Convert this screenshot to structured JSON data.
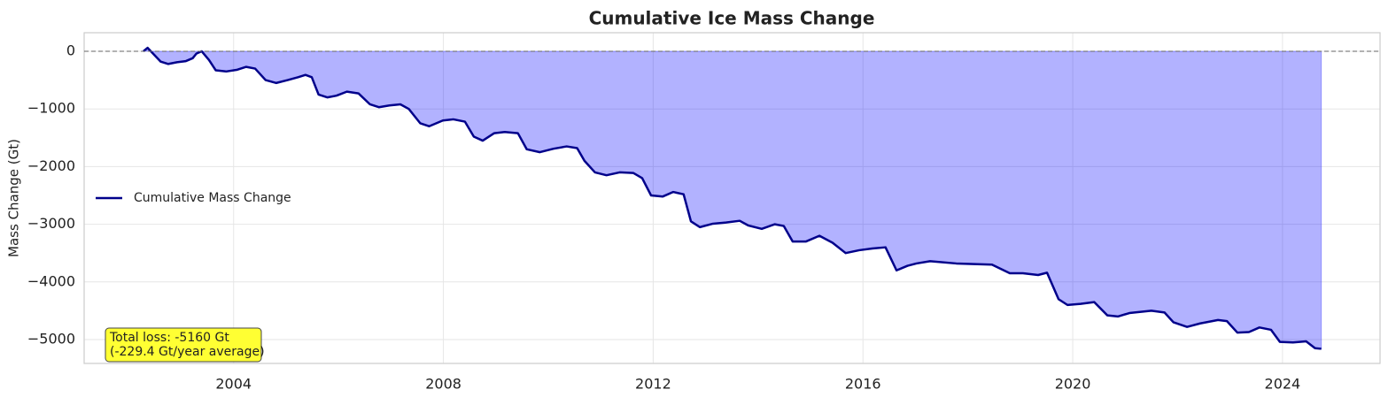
{
  "chart_data": {
    "type": "line",
    "title": "Cumulative Ice Mass Change",
    "ylabel": "Mass Change (Gt)",
    "x": [
      2002.28,
      2002.36,
      2002.61,
      2002.75,
      2002.92,
      2003.09,
      2003.22,
      2003.29,
      2003.39,
      2003.53,
      2003.66,
      2003.86,
      2004.07,
      2004.24,
      2004.41,
      2004.61,
      2004.81,
      2005.03,
      2005.23,
      2005.37,
      2005.49,
      2005.62,
      2005.79,
      2005.96,
      2006.16,
      2006.38,
      2006.6,
      2006.77,
      2006.97,
      2007.18,
      2007.34,
      2007.56,
      2007.73,
      2007.99,
      2008.19,
      2008.41,
      2008.58,
      2008.75,
      2008.97,
      2009.17,
      2009.42,
      2009.59,
      2009.84,
      2010.1,
      2010.35,
      2010.55,
      2010.69,
      2010.89,
      2011.11,
      2011.36,
      2011.62,
      2011.79,
      2011.96,
      2012.18,
      2012.38,
      2012.58,
      2012.72,
      2012.89,
      2013.14,
      2013.39,
      2013.65,
      2013.81,
      2014.07,
      2014.32,
      2014.49,
      2014.66,
      2014.91,
      2015.17,
      2015.42,
      2015.67,
      2015.93,
      2016.18,
      2016.43,
      2016.64,
      2016.85,
      2017.02,
      2017.28,
      2017.78,
      2018.46,
      2018.8,
      2019.05,
      2019.34,
      2019.51,
      2019.73,
      2019.9,
      2020.15,
      2020.41,
      2020.66,
      2020.86,
      2021.08,
      2021.5,
      2021.75,
      2021.92,
      2022.18,
      2022.43,
      2022.77,
      2022.94,
      2023.14,
      2023.36,
      2023.56,
      2023.78,
      2023.95,
      2024.2,
      2024.45,
      2024.62,
      2024.74
    ],
    "series": [
      {
        "name": "Cumulative Mass Change",
        "color": "#00008b",
        "fill_color": "#0000ff",
        "fill_alpha": 0.3,
        "values": [
          0,
          60,
          -180,
          -220,
          -190,
          -170,
          -120,
          -40,
          0,
          -150,
          -330,
          -350,
          -320,
          -270,
          -300,
          -500,
          -550,
          -500,
          -450,
          -410,
          -450,
          -750,
          -800,
          -770,
          -700,
          -730,
          -920,
          -970,
          -940,
          -920,
          -1000,
          -1250,
          -1300,
          -1200,
          -1180,
          -1220,
          -1480,
          -1550,
          -1420,
          -1400,
          -1420,
          -1700,
          -1750,
          -1690,
          -1650,
          -1680,
          -1900,
          -2100,
          -2150,
          -2100,
          -2110,
          -2200,
          -2500,
          -2520,
          -2440,
          -2480,
          -2950,
          -3050,
          -2990,
          -2970,
          -2940,
          -3020,
          -3080,
          -3000,
          -3030,
          -3300,
          -3300,
          -3200,
          -3320,
          -3500,
          -3450,
          -3420,
          -3400,
          -3800,
          -3720,
          -3680,
          -3640,
          -3680,
          -3700,
          -3850,
          -3850,
          -3880,
          -3840,
          -4300,
          -4400,
          -4380,
          -4350,
          -4580,
          -4600,
          -4540,
          -4500,
          -4530,
          -4700,
          -4780,
          -4720,
          -4660,
          -4680,
          -4880,
          -4870,
          -4790,
          -4830,
          -5040,
          -5050,
          -5030,
          -5150,
          -5160
        ]
      }
    ],
    "xlim": [
      2001.15,
      2025.86
    ],
    "ylim": [
      -5414,
      322
    ],
    "xticks": [
      2004,
      2008,
      2012,
      2016,
      2020,
      2024
    ],
    "yticks": [
      0,
      {
        "value": -1000,
        "label": "−1000"
      },
      {
        "value": -2000,
        "label": "−2000"
      },
      {
        "value": -3000,
        "label": "−3000"
      },
      {
        "value": -4000,
        "label": "−4000"
      },
      {
        "value": -5000,
        "label": "−5000"
      }
    ],
    "grid": true,
    "zero_line": true,
    "legend": "center left",
    "annotation": {
      "lines": [
        "Total loss: -5160 Gt",
        "(-229.4 Gt/year average)"
      ],
      "background": "#ffff33"
    }
  }
}
